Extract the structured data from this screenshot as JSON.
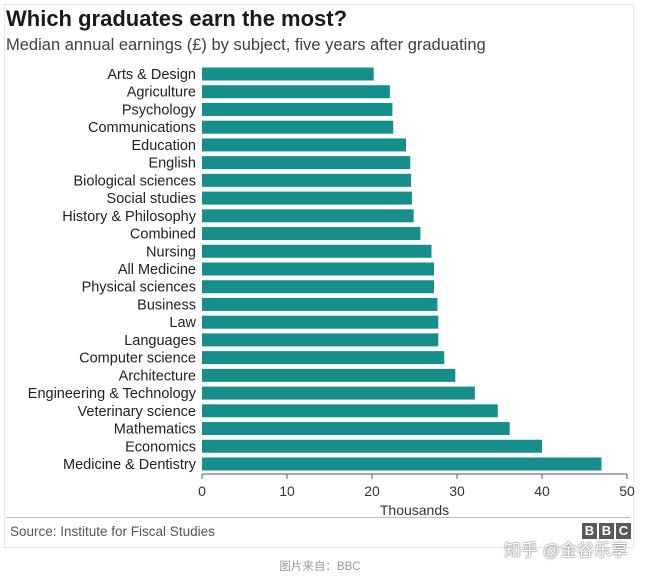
{
  "chart_data": {
    "type": "bar",
    "orientation": "horizontal",
    "title": "Which graduates earn the most?",
    "subtitle": "Median annual earnings (£) by subject, five years after graduating",
    "xlabel": "Thousands",
    "ylabel": "",
    "xlim": [
      0,
      50
    ],
    "xticks": [
      0,
      10,
      20,
      30,
      40,
      50
    ],
    "grid": false,
    "bar_color": "#168f8a",
    "categories": [
      "Arts & Design",
      "Agriculture",
      "Psychology",
      "Communications",
      "Education",
      "English",
      "Biological sciences",
      "Social studies",
      "History & Philosophy",
      "Combined",
      "Nursing",
      "All Medicine",
      "Physical sciences",
      "Business",
      "Law",
      "Languages",
      "Computer science",
      "Architecture",
      "Engineering & Technology",
      "Veterinary science",
      "Mathematics",
      "Economics",
      "Medicine & Dentistry"
    ],
    "values": [
      20.2,
      22.1,
      22.4,
      22.5,
      24.0,
      24.5,
      24.6,
      24.7,
      24.9,
      25.7,
      27.0,
      27.3,
      27.3,
      27.7,
      27.8,
      27.8,
      28.5,
      29.8,
      32.1,
      34.8,
      36.2,
      40.0,
      47.0
    ]
  },
  "source": "Source: Institute for Fiscal Studies",
  "logo": {
    "letters": [
      "B",
      "B",
      "C"
    ]
  },
  "watermark": "知乎 @金谷乐享",
  "caption": "图片来自：BBC"
}
